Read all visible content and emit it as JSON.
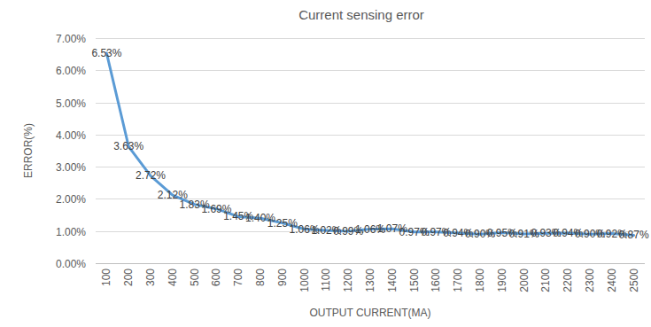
{
  "chart_data": {
    "type": "line",
    "title": "Current sensing error",
    "x_label": "OUTPUT CURRENT(MA)",
    "y_label": "ERROR(%)",
    "categories": [
      "100",
      "200",
      "300",
      "400",
      "500",
      "600",
      "700",
      "800",
      "900",
      "1000",
      "1100",
      "1200",
      "1300",
      "1400",
      "1500",
      "1600",
      "1700",
      "1800",
      "1900",
      "2000",
      "2100",
      "2200",
      "2300",
      "2400",
      "2500"
    ],
    "values": [
      6.53,
      3.63,
      2.72,
      2.12,
      1.83,
      1.69,
      1.45,
      1.4,
      1.25,
      1.06,
      1.02,
      0.99,
      1.06,
      1.07,
      0.97,
      0.97,
      0.94,
      0.9,
      0.95,
      0.91,
      0.93,
      0.94,
      0.9,
      0.92,
      0.87
    ],
    "value_labels": [
      "6.53%",
      "3.63%",
      "2.72%",
      "2.12%",
      "1.83%",
      "1.69%",
      "1.45%",
      "1.40%",
      "1.25%",
      "1.06%",
      "1.02%",
      "0.99%",
      "1.06%",
      "1.07%",
      "0.97%",
      "0.97%",
      "0.94%",
      "0.90%",
      "0.95%",
      "0.91%",
      "0.93%",
      "0.94%",
      "0.90%",
      "0.92%",
      "0.87%"
    ],
    "color": "#5b9bd5",
    "ylim": [
      0,
      7
    ],
    "yticks": [
      {
        "value": 0,
        "label": "0.00%"
      },
      {
        "value": 1,
        "label": "1.00%"
      },
      {
        "value": 2,
        "label": "2.00%"
      },
      {
        "value": 3,
        "label": "3.00%"
      },
      {
        "value": 4,
        "label": "4.00%"
      },
      {
        "value": 5,
        "label": "5.00%"
      },
      {
        "value": 6,
        "label": "6.00%"
      },
      {
        "value": 7,
        "label": "7.00%"
      }
    ],
    "grid": true,
    "data_labels": true
  }
}
